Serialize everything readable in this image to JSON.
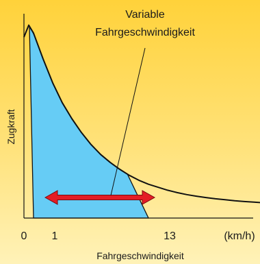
{
  "chart_data": {
    "type": "area",
    "x_unit": "(km/h)",
    "xlabel": "Fahrgeschwindigkeit",
    "ylabel": "Zugkraft",
    "x_ticks": [
      "0",
      "1",
      "13"
    ],
    "annotation": [
      "Variable",
      "Fahrgeschwindigkeit"
    ],
    "curve": {
      "x": [
        0,
        0.5,
        1,
        2,
        3,
        4,
        5,
        6,
        7,
        8,
        9,
        10,
        11,
        12,
        13,
        14,
        15,
        16,
        17,
        18,
        19,
        20,
        21,
        22,
        23,
        24,
        25
      ],
      "y": [
        0.91,
        0.97,
        0.93,
        0.8,
        0.68,
        0.58,
        0.5,
        0.43,
        0.37,
        0.32,
        0.28,
        0.245,
        0.215,
        0.19,
        0.17,
        0.155,
        0.14,
        0.128,
        0.118,
        0.11,
        0.103,
        0.097,
        0.092,
        0.087,
        0.083,
        0.08,
        0.077
      ]
    },
    "shaded_range": [
      1,
      13
    ],
    "arrow_range": [
      1.5,
      12.5
    ],
    "colors": {
      "fill": "#66ccf5",
      "curve": "#111111",
      "arrow": "#e41d25"
    }
  }
}
